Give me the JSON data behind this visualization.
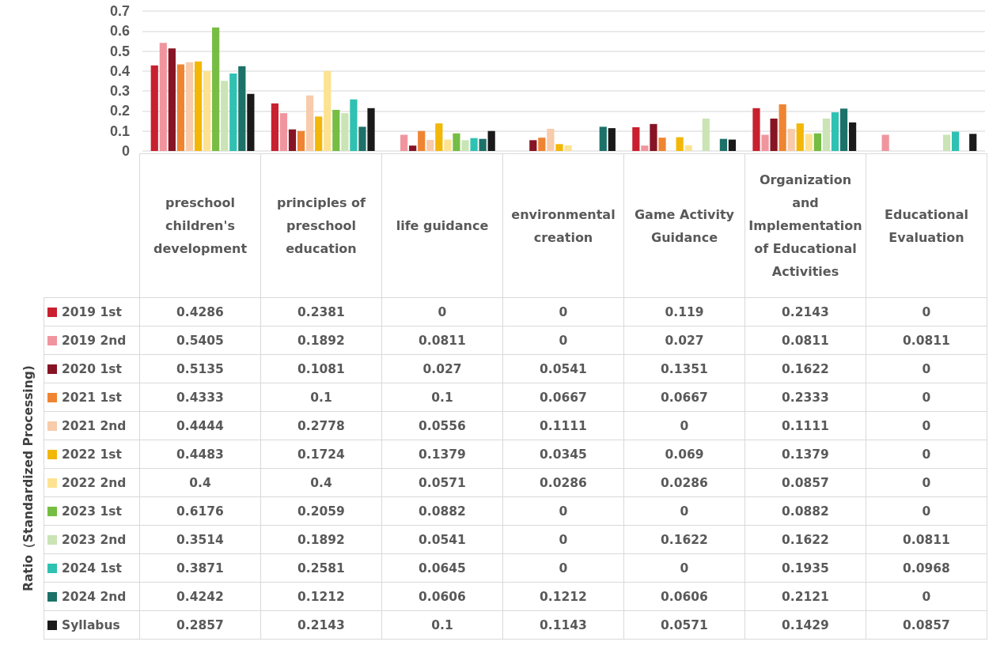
{
  "chart_data": {
    "type": "bar",
    "annotations": [
      "Ratio（Standardized Processing)"
    ],
    "categories": [
      "preschool children's development",
      "principles of preschool education",
      "life guidance",
      "environmental creation",
      "Game Activity Guidance",
      "Organization and Implementation of Educational Activities",
      "Educational Evaluation"
    ],
    "series": [
      {
        "name": "2019 1st",
        "color": "#c8202f",
        "values": [
          0.4286,
          0.2381,
          0,
          0,
          0.119,
          0.2143,
          0
        ]
      },
      {
        "name": "2019 2nd",
        "color": "#f0959e",
        "values": [
          0.5405,
          0.1892,
          0.0811,
          0,
          0.027,
          0.0811,
          0.0811
        ]
      },
      {
        "name": "2020 1st",
        "color": "#861424",
        "values": [
          0.5135,
          0.1081,
          0.027,
          0.0541,
          0.1351,
          0.1622,
          0
        ]
      },
      {
        "name": "2021 1st",
        "color": "#ef8532",
        "values": [
          0.4333,
          0.1,
          0.1,
          0.0667,
          0.0667,
          0.2333,
          0
        ]
      },
      {
        "name": "2021 2nd",
        "color": "#f7cbab",
        "values": [
          0.4444,
          0.2778,
          0.0556,
          0.1111,
          0,
          0.1111,
          0
        ]
      },
      {
        "name": "2022 1st",
        "color": "#f2b707",
        "values": [
          0.4483,
          0.1724,
          0.1379,
          0.0345,
          0.069,
          0.1379,
          0
        ]
      },
      {
        "name": "2022 2nd",
        "color": "#fde391",
        "values": [
          0.4,
          0.4,
          0.0571,
          0.0286,
          0.0286,
          0.0857,
          0
        ]
      },
      {
        "name": "2023 1st",
        "color": "#76bd43",
        "values": [
          0.6176,
          0.2059,
          0.0882,
          0,
          0,
          0.0882,
          0
        ]
      },
      {
        "name": "2023 2nd",
        "color": "#cae4b5",
        "values": [
          0.3514,
          0.1892,
          0.0541,
          0,
          0.1622,
          0.1622,
          0.0811
        ]
      },
      {
        "name": "2024 1st",
        "color": "#2fc1b2",
        "values": [
          0.3871,
          0.2581,
          0.0645,
          0,
          0,
          0.1935,
          0.0968
        ]
      },
      {
        "name": "2024 2nd",
        "color": "#1c7169",
        "values": [
          0.4242,
          0.1212,
          0.0606,
          0.1212,
          0.0606,
          0.2121,
          0
        ]
      },
      {
        "name": "Syllabus",
        "color": "#1a1a1a",
        "values": [
          0.2857,
          0.2143,
          0.1,
          0.1143,
          0.0571,
          0.1429,
          0.0857
        ]
      }
    ],
    "ylim": [
      0,
      0.7
    ],
    "yticks": [
      0,
      0.1,
      0.2,
      0.3,
      0.4,
      0.5,
      0.6,
      0.7
    ],
    "grid": "y",
    "legend": "left",
    "data_labels": true
  }
}
